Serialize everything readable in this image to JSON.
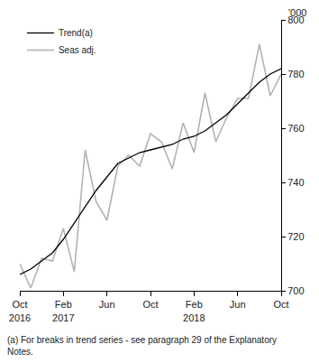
{
  "chart_data": {
    "type": "line",
    "y_label": "'000",
    "footnote": "(a) For breaks in trend series - see paragraph 29 of the Explanatory Notes.",
    "categories": [
      "Oct\n2016",
      null,
      null,
      null,
      "Feb\n2017",
      null,
      null,
      null,
      "Jun",
      null,
      null,
      null,
      "Oct",
      null,
      null,
      null,
      "Feb\n2018",
      null,
      null,
      null,
      "Jun",
      null,
      null,
      null,
      "Oct"
    ],
    "series": [
      {
        "name": "Trend(a)",
        "color": "#000000",
        "values": [
          706,
          708,
          711,
          714,
          719,
          725,
          731,
          737,
          742,
          747,
          749,
          751,
          752,
          753,
          754,
          756,
          757,
          759,
          762,
          765,
          769,
          773,
          777,
          780,
          782
        ]
      },
      {
        "name": "Seas adj.",
        "color": "#b3b3b3",
        "values": [
          710,
          701,
          712,
          711,
          723,
          707,
          752,
          733,
          726,
          746,
          750,
          746,
          758,
          755,
          745,
          762,
          751,
          773,
          755,
          764,
          771,
          771,
          791,
          772,
          780
        ]
      }
    ],
    "ylim": [
      700,
      800
    ],
    "yticks": [
      700,
      720,
      740,
      760,
      780,
      800
    ],
    "legend": "top-left",
    "grid": false
  }
}
